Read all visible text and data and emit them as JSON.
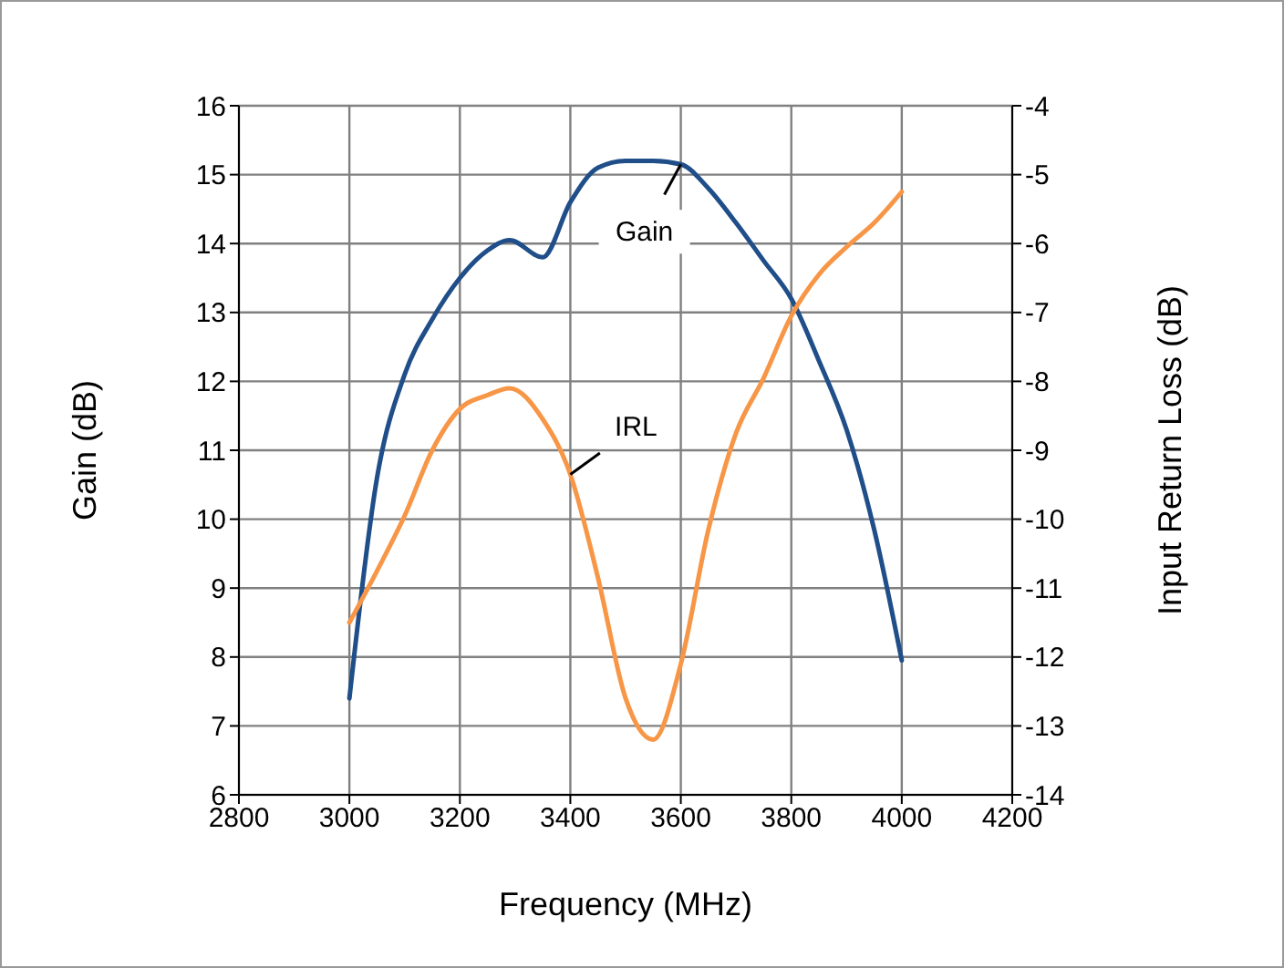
{
  "chart_data": {
    "type": "line",
    "xlabel": "Frequency (MHz)",
    "ylabel": "Gain (dB)",
    "y2label": "Input Return Loss (dB)",
    "xlim": [
      2800,
      4200
    ],
    "xticks": [
      2800,
      3000,
      3200,
      3400,
      3600,
      3800,
      4000,
      4200
    ],
    "ylim": [
      6,
      16
    ],
    "yticks": [
      6,
      7,
      8,
      9,
      10,
      11,
      12,
      13,
      14,
      15,
      16
    ],
    "y2lim": [
      -14,
      -4
    ],
    "y2ticks": [
      -14,
      -13,
      -12,
      -11,
      -10,
      -9,
      -8,
      -7,
      -6,
      -5,
      -4
    ],
    "grid": true,
    "marker": "none",
    "series": [
      {
        "color": "#1f4e89",
        "x": [
          3000,
          3050,
          3100,
          3150,
          3200,
          3250,
          3290,
          3350,
          3400,
          3450,
          3500,
          3550,
          3600,
          3650,
          3700,
          3750,
          3800,
          3850,
          3900,
          3950,
          4000
        ],
        "values": [
          7.4,
          10.6,
          12.1,
          12.9,
          13.5,
          13.9,
          14.05,
          13.8,
          14.6,
          15.1,
          15.2,
          15.2,
          15.15,
          14.8,
          14.3,
          13.75,
          13.2,
          12.3,
          11.3,
          9.85,
          7.95
        ]
      },
      {
        "color": "#f79646",
        "axis": "y2",
        "x": [
          3000,
          3050,
          3100,
          3150,
          3200,
          3250,
          3290,
          3350,
          3400,
          3450,
          3500,
          3550,
          3600,
          3650,
          3700,
          3750,
          3800,
          3850,
          3900,
          3950,
          4000
        ],
        "values": [
          -11.5,
          -10.75,
          -9.95,
          -9.0,
          -8.4,
          -8.2,
          -8.1,
          -8.55,
          -9.35,
          -10.85,
          -12.6,
          -13.2,
          -12.1,
          -10.15,
          -8.75,
          -7.95,
          -7.05,
          -6.45,
          -6.05,
          -5.7,
          -5.25
        ]
      }
    ],
    "annotations": [
      "Gain",
      "IRL"
    ]
  }
}
